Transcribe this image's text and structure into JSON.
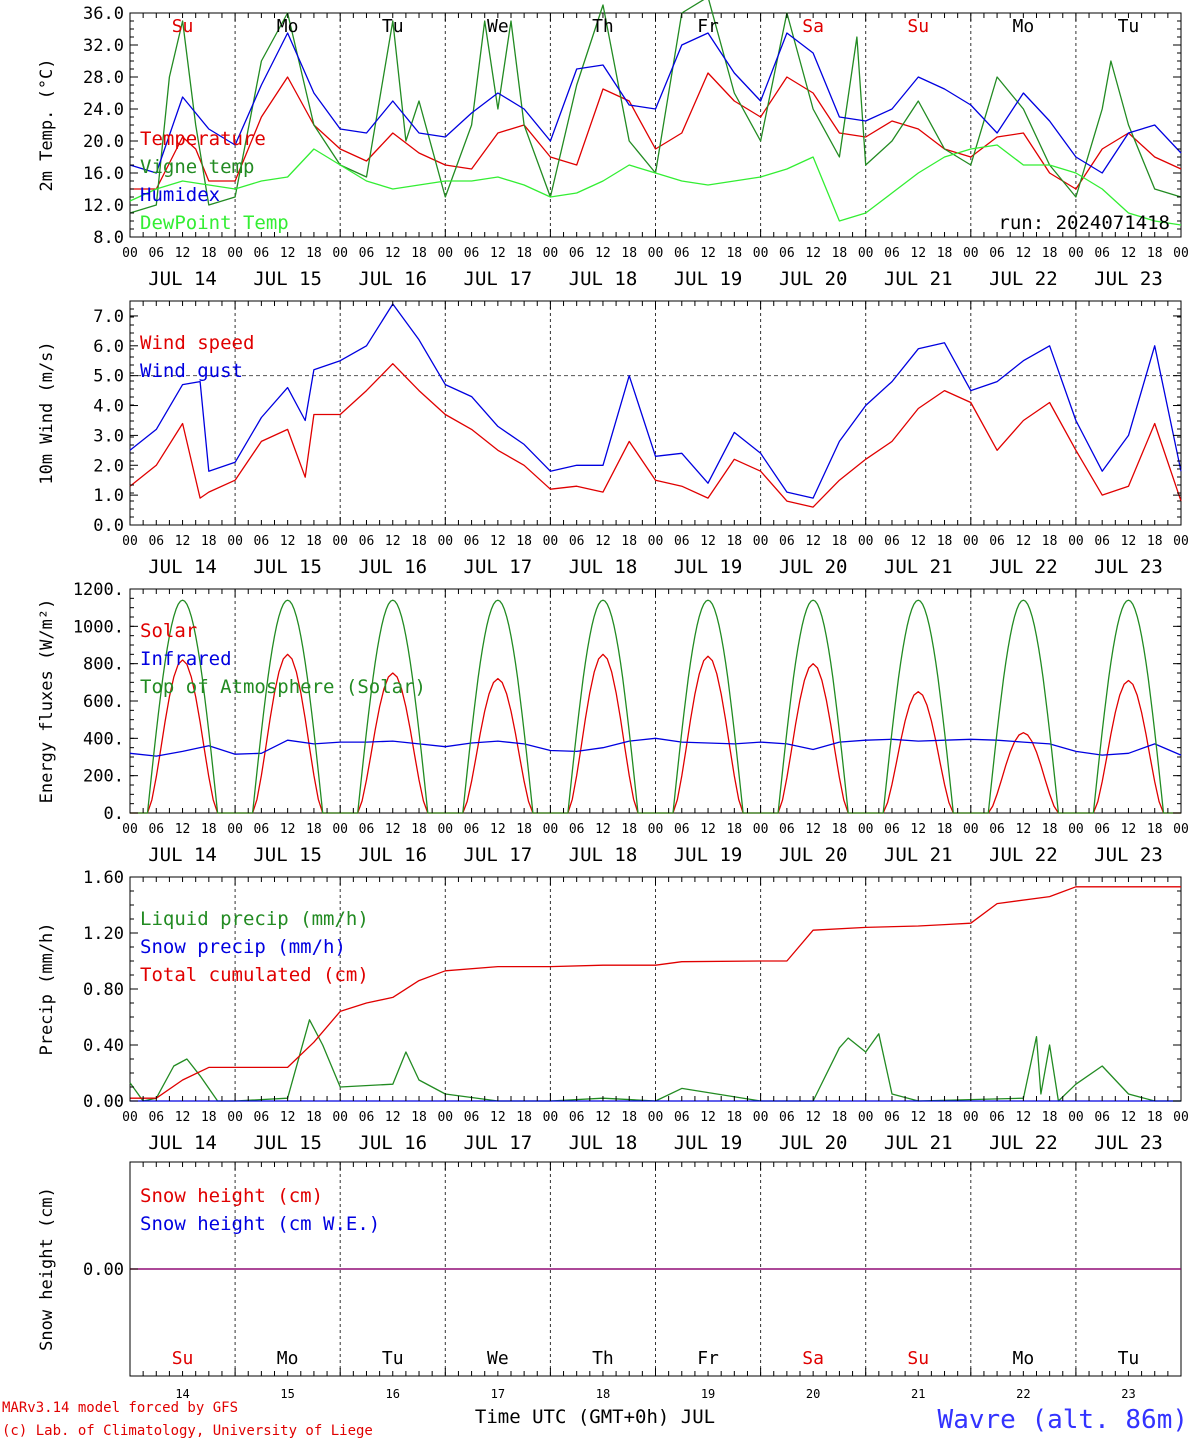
{
  "chart_data": [
    {
      "type": "line",
      "ylabel": "2m Temp. (°C)",
      "ylim": [
        8,
        36
      ],
      "yticks": [
        "8.0",
        "12.0",
        "16.0",
        "20.0",
        "24.0",
        "28.0",
        "32.0",
        "36.0"
      ],
      "annotation": "run: 2024071418",
      "series": [
        {
          "name": "Temperature",
          "color": "#e00000",
          "x": [
            0,
            6,
            12,
            15,
            18,
            24,
            30,
            36,
            42,
            48,
            54,
            60,
            66,
            72,
            78,
            84,
            90,
            96,
            102,
            108,
            114,
            120,
            126,
            132,
            138,
            144,
            150,
            156,
            162,
            168,
            174,
            180,
            186,
            192,
            198,
            204,
            210,
            216,
            222,
            228,
            234,
            240
          ],
          "y": [
            14,
            14,
            20.5,
            19,
            15,
            15,
            23,
            28,
            22,
            19,
            17.5,
            21,
            18.5,
            17,
            16.5,
            21,
            22,
            18,
            17,
            26.5,
            25,
            19,
            21,
            28.5,
            25,
            23,
            28,
            26,
            21,
            20.5,
            22.5,
            21.5,
            19,
            18,
            20.5,
            21,
            16,
            14,
            19,
            21,
            18,
            16.5
          ]
        },
        {
          "name": "Vigne temp",
          "color": "#228b22",
          "x": [
            0,
            6,
            9,
            12,
            15,
            18,
            24,
            30,
            36,
            42,
            48,
            54,
            60,
            63,
            66,
            72,
            78,
            81,
            84,
            87,
            90,
            96,
            102,
            108,
            114,
            120,
            126,
            132,
            138,
            144,
            150,
            156,
            162,
            166,
            168,
            174,
            180,
            186,
            192,
            198,
            204,
            210,
            216,
            222,
            224,
            228,
            234,
            240
          ],
          "y": [
            11,
            12,
            28,
            35,
            22,
            12,
            13,
            30,
            36,
            22,
            17,
            15.5,
            35,
            20,
            25,
            13,
            22,
            35,
            24,
            35,
            22,
            13,
            27,
            37,
            20,
            16,
            36,
            38,
            26,
            20,
            36,
            24,
            18,
            33,
            17,
            20,
            25,
            19,
            17,
            28,
            24,
            17,
            13,
            24,
            30,
            22,
            14,
            13
          ]
        },
        {
          "name": "Humidex",
          "color": "#0000e0",
          "x": [
            0,
            6,
            12,
            18,
            24,
            30,
            36,
            42,
            48,
            54,
            60,
            66,
            72,
            78,
            84,
            90,
            96,
            102,
            108,
            114,
            120,
            126,
            132,
            138,
            144,
            150,
            156,
            162,
            168,
            174,
            180,
            186,
            192,
            198,
            204,
            210,
            216,
            222,
            228,
            234,
            240
          ],
          "y": [
            17,
            16,
            25.5,
            21.5,
            19.5,
            27,
            33.5,
            26,
            21.5,
            21,
            25,
            21,
            20.5,
            23.5,
            26,
            24,
            20,
            29,
            29.5,
            24.5,
            24,
            32,
            33.5,
            28.5,
            25,
            33.5,
            31,
            23,
            22.5,
            24,
            28,
            26.5,
            24.5,
            21,
            26,
            22.5,
            18,
            16,
            21,
            22,
            18.5
          ]
        },
        {
          "name": "DewPoint Temp",
          "color": "#33ee33",
          "x": [
            0,
            6,
            12,
            18,
            24,
            30,
            36,
            42,
            48,
            54,
            60,
            66,
            72,
            78,
            84,
            90,
            96,
            102,
            108,
            114,
            120,
            126,
            132,
            138,
            144,
            150,
            156,
            162,
            168,
            174,
            180,
            186,
            192,
            198,
            204,
            210,
            216,
            222,
            228,
            234,
            240
          ],
          "y": [
            12.5,
            14,
            15,
            14.5,
            14,
            15,
            15.5,
            19,
            17,
            15,
            14,
            14.5,
            15,
            15,
            15.5,
            14.5,
            13,
            13.5,
            15,
            17,
            16,
            15,
            14.5,
            15,
            15.5,
            16.5,
            18,
            10,
            11,
            13.5,
            16,
            18,
            19,
            19.5,
            17,
            17,
            16,
            14,
            11,
            10,
            9.5
          ]
        }
      ]
    },
    {
      "type": "line",
      "ylabel": "10m Wind (m/s)",
      "ylim": [
        0,
        7.5
      ],
      "yticks": [
        "0.0",
        "1.0",
        "2.0",
        "3.0",
        "4.0",
        "5.0",
        "6.0",
        "7.0"
      ],
      "reference_line": 5.0,
      "series": [
        {
          "name": "Wind speed",
          "color": "#e00000",
          "x": [
            0,
            6,
            12,
            16,
            18,
            24,
            30,
            36,
            40,
            42,
            48,
            54,
            60,
            66,
            72,
            78,
            84,
            90,
            96,
            102,
            108,
            114,
            120,
            126,
            132,
            138,
            144,
            150,
            156,
            162,
            168,
            174,
            180,
            186,
            192,
            198,
            204,
            210,
            216,
            222,
            228,
            234,
            240
          ],
          "y": [
            1.3,
            2,
            3.4,
            0.9,
            1.1,
            1.5,
            2.8,
            3.2,
            1.6,
            3.7,
            3.7,
            4.5,
            5.4,
            4.5,
            3.7,
            3.2,
            2.5,
            2,
            1.2,
            1.3,
            1.1,
            2.8,
            1.5,
            1.3,
            0.9,
            2.2,
            1.8,
            0.8,
            0.6,
            1.5,
            2.2,
            2.8,
            3.9,
            4.5,
            4.1,
            2.5,
            3.5,
            4.1,
            2.5,
            1.0,
            1.3,
            3.4,
            0.8
          ]
        },
        {
          "name": "Wind gust",
          "color": "#0000e0",
          "x": [
            0,
            6,
            12,
            16,
            18,
            24,
            30,
            36,
            40,
            42,
            48,
            54,
            60,
            66,
            72,
            78,
            84,
            90,
            96,
            102,
            108,
            114,
            120,
            126,
            132,
            138,
            144,
            150,
            156,
            162,
            168,
            174,
            180,
            186,
            192,
            198,
            204,
            210,
            216,
            222,
            228,
            234,
            240
          ],
          "y": [
            2.5,
            3.2,
            4.7,
            4.8,
            1.8,
            2.1,
            3.6,
            4.6,
            3.5,
            5.2,
            5.5,
            6.0,
            7.4,
            6.2,
            4.7,
            4.3,
            3.3,
            2.7,
            1.8,
            2.0,
            2.0,
            5.0,
            2.3,
            2.4,
            1.4,
            3.1,
            2.4,
            1.1,
            0.9,
            2.8,
            4.0,
            4.8,
            5.9,
            6.1,
            4.5,
            4.8,
            5.5,
            6.0,
            3.5,
            1.8,
            3.0,
            6.0,
            1.8
          ]
        }
      ]
    },
    {
      "type": "line",
      "ylabel": "Energy fluxes (W/m²)",
      "ylim": [
        0,
        1200
      ],
      "yticks": [
        "0.",
        "200.",
        "400.",
        "600.",
        "800.",
        "1000.",
        "1200."
      ],
      "series": [
        {
          "name": "Solar",
          "color": "#e00000",
          "peaks": [
            820,
            850,
            750,
            720,
            850,
            840,
            800,
            650,
            430,
            710
          ]
        },
        {
          "name": "Infrared",
          "color": "#0000e0",
          "x": [
            0,
            6,
            12,
            18,
            24,
            30,
            36,
            42,
            48,
            54,
            60,
            66,
            72,
            78,
            84,
            90,
            96,
            102,
            108,
            114,
            120,
            126,
            132,
            138,
            144,
            150,
            156,
            162,
            168,
            174,
            180,
            186,
            192,
            198,
            204,
            210,
            216,
            222,
            228,
            234,
            240
          ],
          "y": [
            320,
            305,
            330,
            360,
            315,
            320,
            390,
            370,
            380,
            380,
            385,
            370,
            355,
            375,
            385,
            370,
            335,
            330,
            350,
            385,
            400,
            380,
            375,
            370,
            380,
            370,
            340,
            380,
            390,
            395,
            385,
            390,
            395,
            390,
            380,
            370,
            330,
            310,
            320,
            370,
            310
          ]
        },
        {
          "name": "Top of Atmosphere (Solar)",
          "color": "#228b22",
          "peak": 1140
        }
      ]
    },
    {
      "type": "line",
      "ylabel": "Precip (mm/h)",
      "ylim": [
        0,
        1.6
      ],
      "yticks": [
        "0.00",
        "0.40",
        "0.80",
        "1.20",
        "1.60"
      ],
      "series": [
        {
          "name": "Liquid precip (mm/h)",
          "color": "#228b22",
          "x": [
            0,
            3,
            6,
            10,
            13,
            16,
            20,
            24,
            36,
            41,
            44,
            48,
            60,
            63,
            66,
            72,
            84,
            96,
            108,
            120,
            126,
            144,
            156,
            162,
            164,
            168,
            171,
            174,
            180,
            204,
            207,
            208,
            210,
            212,
            216,
            222,
            228,
            234,
            240
          ],
          "y": [
            0.13,
            0,
            0.02,
            0.25,
            0.3,
            0.18,
            0,
            0,
            0.02,
            0.58,
            0.4,
            0.1,
            0.12,
            0.35,
            0.15,
            0.05,
            0,
            0,
            0.02,
            0,
            0.09,
            0,
            0,
            0.38,
            0.45,
            0.35,
            0.48,
            0.05,
            0,
            0.02,
            0.46,
            0.05,
            0.4,
            0,
            0.12,
            0.25,
            0.05,
            0,
            0
          ]
        },
        {
          "name": "Snow precip (mm/h)",
          "color": "#0000e0",
          "constant": 0
        },
        {
          "name": "Total cumulated (cm)",
          "color": "#e00000",
          "x": [
            0,
            6,
            12,
            18,
            24,
            36,
            42,
            48,
            54,
            60,
            66,
            72,
            84,
            96,
            108,
            120,
            126,
            144,
            150,
            156,
            168,
            180,
            186,
            192,
            198,
            210,
            216,
            240
          ],
          "y": [
            0.02,
            0.02,
            0.15,
            0.24,
            0.24,
            0.24,
            0.42,
            0.64,
            0.7,
            0.74,
            0.86,
            0.93,
            0.96,
            0.96,
            0.97,
            0.97,
            0.995,
            1.0,
            1.0,
            1.22,
            1.24,
            1.25,
            1.26,
            1.27,
            1.41,
            1.46,
            1.53,
            1.53
          ]
        }
      ]
    },
    {
      "type": "line",
      "ylabel": "Snow height (cm)",
      "yticks": [
        "0.00"
      ],
      "series": [
        {
          "name": "Snow height (cm)",
          "color": "#e00000",
          "constant": 0
        },
        {
          "name": "Snow height (cm W.E.)",
          "color": "#0000e0",
          "constant": 0
        }
      ]
    }
  ],
  "x_axis": {
    "hour_labels": [
      "00",
      "06",
      "12",
      "18"
    ],
    "final_hour_label": "00",
    "date_labels": [
      "JUL 14",
      "JUL 15",
      "JUL 16",
      "JUL 17",
      "JUL 18",
      "JUL 19",
      "JUL 20",
      "JUL 21",
      "JUL 22",
      "JUL 23"
    ],
    "weekdays": [
      "Su",
      "Mo",
      "Tu",
      "We",
      "Th",
      "Fr",
      "Sa",
      "Su",
      "Mo",
      "Tu"
    ],
    "weekday_colors": [
      "#e00000",
      "#000000",
      "#000000",
      "#000000",
      "#000000",
      "#000000",
      "#e00000",
      "#e00000",
      "#000000",
      "#000000"
    ],
    "day_numbers": [
      "14",
      "15",
      "16",
      "17",
      "18",
      "19",
      "20",
      "21",
      "22",
      "23"
    ],
    "title": "Time UTC (GMT+0h) JUL"
  },
  "footer": {
    "credit_line1": "MARv3.14 model forced by GFS",
    "credit_line2": "(c) Lab. of Climatology, University of Liege",
    "location": "Wavre (alt. 86m)"
  },
  "colors": {
    "red": "#e00000",
    "green": "#228b22",
    "blue": "#0000e0",
    "lightgreen": "#33ee33",
    "purple": "#800080"
  }
}
